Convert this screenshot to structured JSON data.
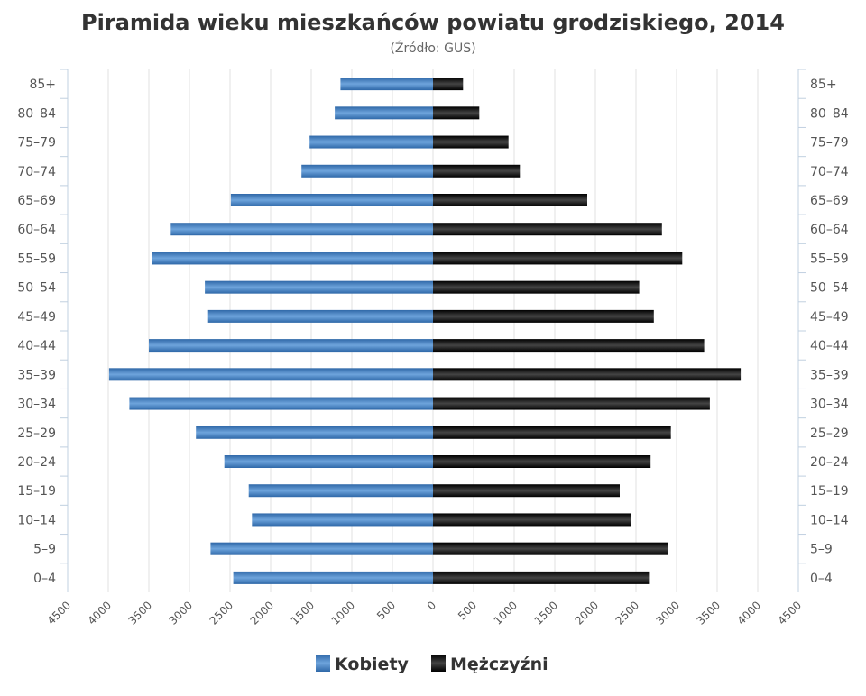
{
  "chart_data": {
    "type": "bar",
    "orientation": "horizontal-pyramid",
    "title": "Piramida wieku mieszkańców powiatu grodziskiego, 2014",
    "subtitle": "(Źródło: GUS)",
    "categories": [
      "85+",
      "80-84",
      "75-79",
      "70-74",
      "65-69",
      "60-64",
      "55-59",
      "50-54",
      "45-49",
      "40-44",
      "35-39",
      "30-34",
      "25-29",
      "20-24",
      "15-19",
      "10-14",
      "5-9",
      "0-4"
    ],
    "series": [
      {
        "name": "Kobiety",
        "side": "left",
        "color": "#4a84c4",
        "values": [
          1140,
          1210,
          1520,
          1620,
          2490,
          3230,
          3460,
          2810,
          2770,
          3500,
          3990,
          3740,
          2920,
          2570,
          2270,
          2230,
          2740,
          2460
        ]
      },
      {
        "name": "Mężczyźni",
        "side": "right",
        "color": "#1a1a1a",
        "values": [
          370,
          570,
          930,
          1070,
          1900,
          2820,
          3070,
          2540,
          2720,
          3340,
          3790,
          3410,
          2930,
          2680,
          2300,
          2440,
          2890,
          2660
        ]
      }
    ],
    "xlim": [
      -4500,
      4500
    ],
    "xticks": [
      -4500,
      -4000,
      -3500,
      -3000,
      -2500,
      -2000,
      -1500,
      -1000,
      -500,
      0,
      500,
      1000,
      1500,
      2000,
      2500,
      3000,
      3500,
      4000,
      4500
    ],
    "xtick_labels": [
      "4500",
      "4000",
      "3500",
      "3000",
      "2500",
      "2000",
      "1500",
      "1000",
      "500",
      "0",
      "500",
      "1000",
      "1500",
      "2000",
      "2500",
      "3000",
      "3500",
      "4000",
      "4500"
    ],
    "grid": true,
    "legend": "bottom-center"
  }
}
